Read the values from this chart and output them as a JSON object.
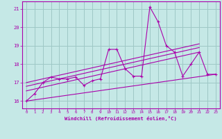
{
  "xlabel": "Windchill (Refroidissement éolien,°C)",
  "bg_color": "#c5e8e6",
  "grid_color": "#9ec8c6",
  "line_color": "#aa00aa",
  "xlim": [
    -0.5,
    23.5
  ],
  "ylim": [
    15.6,
    21.4
  ],
  "yticks": [
    16,
    17,
    18,
    19,
    20,
    21
  ],
  "xticks": [
    0,
    1,
    2,
    3,
    4,
    5,
    6,
    7,
    8,
    9,
    10,
    11,
    12,
    13,
    14,
    15,
    16,
    17,
    18,
    19,
    20,
    21,
    22,
    23
  ],
  "main_x": [
    0,
    1,
    2,
    3,
    4,
    5,
    6,
    7,
    8,
    9,
    10,
    11,
    12,
    13,
    14,
    15,
    16,
    17,
    18,
    19,
    20,
    21,
    22,
    23
  ],
  "main_y": [
    16.0,
    16.4,
    17.0,
    17.3,
    17.2,
    17.2,
    17.3,
    16.85,
    17.1,
    17.2,
    18.8,
    18.8,
    17.75,
    17.35,
    17.35,
    21.1,
    20.3,
    19.0,
    18.65,
    17.35,
    18.0,
    18.65,
    17.45,
    17.45
  ],
  "line1_x": [
    0,
    23
  ],
  "line1_y": [
    16.0,
    17.45
  ],
  "line2_x": [
    0,
    21
  ],
  "line2_y": [
    16.55,
    18.65
  ],
  "line3_x": [
    0,
    21
  ],
  "line3_y": [
    16.8,
    18.9
  ],
  "line4_x": [
    0,
    21
  ],
  "line4_y": [
    17.0,
    19.1
  ]
}
